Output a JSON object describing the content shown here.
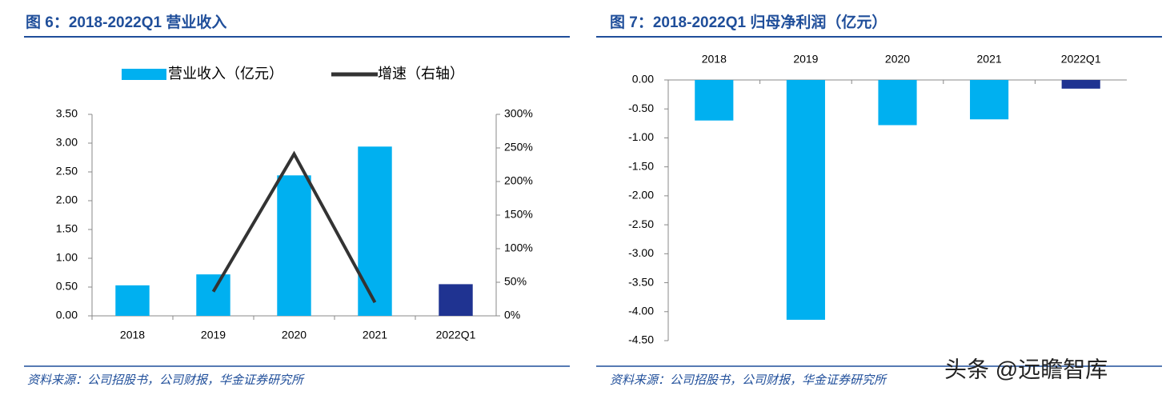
{
  "chart_data": [
    {
      "type": "bar",
      "title": "图 6：2018-2022Q1 营业收入",
      "categories": [
        "2018",
        "2019",
        "2020",
        "2021",
        "2022Q1"
      ],
      "series": [
        {
          "name": "营业收入（亿元）",
          "type": "bar",
          "color": "#00b0f0",
          "colors": [
            "#00b0f0",
            "#00b0f0",
            "#00b0f0",
            "#00b0f0",
            "#1f3391"
          ],
          "values": [
            0.53,
            0.72,
            2.44,
            2.94,
            0.55
          ]
        },
        {
          "name": "增速（右轴）",
          "type": "line",
          "axis": "y2",
          "color": "#333333",
          "values": [
            null,
            36,
            241,
            20,
            null
          ]
        }
      ],
      "ylim": [
        0,
        3.5
      ],
      "yticks": [
        {
          "value": 0,
          "label": "0.00"
        },
        {
          "value": 0.5,
          "label": "0.50"
        },
        {
          "value": 1,
          "label": "1.00"
        },
        {
          "value": 1.5,
          "label": "1.50"
        },
        {
          "value": 2,
          "label": "2.00"
        },
        {
          "value": 2.5,
          "label": "2.50"
        },
        {
          "value": 3,
          "label": "3.00"
        },
        {
          "value": 3.5,
          "label": "3.50"
        }
      ],
      "y2lim": [
        0,
        300
      ],
      "y2ticks": [
        {
          "value": 0,
          "label": "0%"
        },
        {
          "value": 50,
          "label": "50%"
        },
        {
          "value": 100,
          "label": "100%"
        },
        {
          "value": 150,
          "label": "150%"
        },
        {
          "value": 200,
          "label": "200%"
        },
        {
          "value": 250,
          "label": "250%"
        },
        {
          "value": 300,
          "label": "300%"
        }
      ],
      "source": "资料来源：公司招股书，公司财报，华金证券研究所"
    },
    {
      "type": "bar",
      "title": "图 7：2018-2022Q1 归母净利润（亿元）",
      "categories": [
        "2018",
        "2019",
        "2020",
        "2021",
        "2022Q1"
      ],
      "series": [
        {
          "type": "bar",
          "color": "#00b0f0",
          "colors": [
            "#00b0f0",
            "#00b0f0",
            "#00b0f0",
            "#00b0f0",
            "#1f3391"
          ],
          "values": [
            -0.7,
            -4.14,
            -0.78,
            -0.68,
            -0.15
          ]
        }
      ],
      "ylim": [
        -4.5,
        0
      ],
      "yticks": [
        {
          "value": 0,
          "label": "0.00"
        },
        {
          "value": -0.5,
          "label": "-0.50"
        },
        {
          "value": -1,
          "label": "-1.00"
        },
        {
          "value": -1.5,
          "label": "-1.50"
        },
        {
          "value": -2,
          "label": "-2.00"
        },
        {
          "value": -2.5,
          "label": "-2.50"
        },
        {
          "value": -3,
          "label": "-3.00"
        },
        {
          "value": -3.5,
          "label": "-3.50"
        },
        {
          "value": -4,
          "label": "-4.00"
        },
        {
          "value": -4.5,
          "label": "-4.50"
        }
      ],
      "source": "资料来源：公司招股书，公司财报，华金证券研究所"
    }
  ],
  "watermark": "头条 @远瞻智库"
}
